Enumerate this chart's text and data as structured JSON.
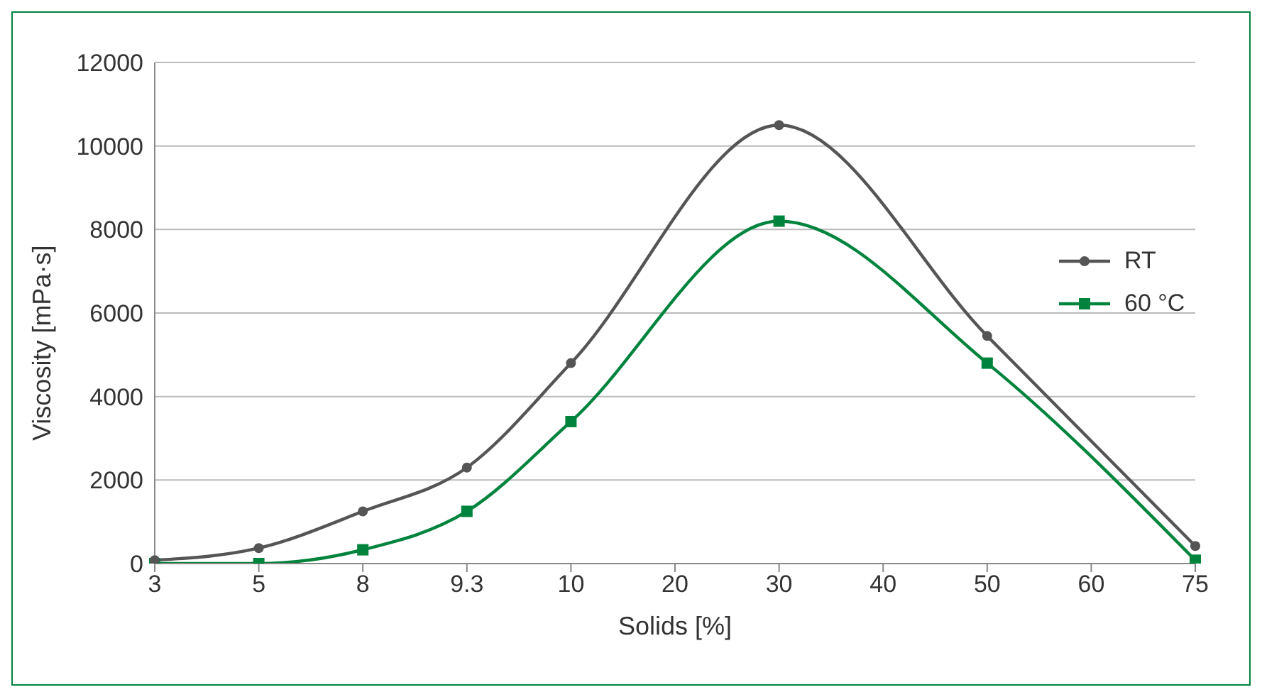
{
  "chart_data": {
    "type": "line",
    "xlabel": "Solids [%]",
    "ylabel": "Viscosity [mPa·s]",
    "categories": [
      "3",
      "5",
      "8",
      "9.3",
      "10",
      "20",
      "30",
      "40",
      "50",
      "60",
      "75"
    ],
    "series": [
      {
        "name": "RT",
        "color": "#555555",
        "marker": "circle",
        "values": [
          80,
          370,
          1250,
          2300,
          4800,
          null,
          10500,
          null,
          5450,
          null,
          420
        ]
      },
      {
        "name": "60 °C",
        "color": "#00843d",
        "marker": "square",
        "values": [
          0,
          0,
          330,
          1250,
          3400,
          null,
          8200,
          null,
          4800,
          null,
          80
        ]
      }
    ],
    "ylim": [
      0,
      12000
    ],
    "yticks": [
      0,
      2000,
      4000,
      6000,
      8000,
      10000,
      12000
    ],
    "grid": "y",
    "legend": "right"
  }
}
